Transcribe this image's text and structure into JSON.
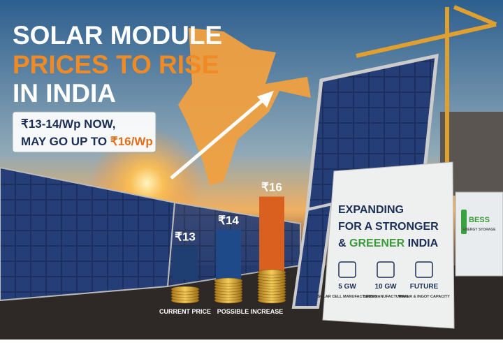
{
  "headline": {
    "line1": "SOLAR MODULE",
    "line2": "PRICES TO RISE",
    "line3": "IN INDIA"
  },
  "price_box": {
    "line1": "₹13-14/Wp NOW,",
    "line2_prefix": "MAY GO UP TO",
    "line2_highlight": "₹16/Wp"
  },
  "chart_data": {
    "type": "bar",
    "categories": [
      "CURRENT PRICE",
      "POSSIBLE INCREASE",
      null
    ],
    "values": [
      13,
      14,
      16
    ],
    "value_labels": [
      "₹13",
      "₹14",
      "₹16"
    ],
    "colors": [
      "#1f3f73",
      "#1f4a8a",
      "#d9601e"
    ],
    "ylim": [
      11,
      16.4
    ]
  },
  "panel": {
    "line1": "EXPANDING",
    "line2": "FOR A STRONGER",
    "line3_prefix": "&",
    "line3_highlight": "GREENER",
    "line3_suffix": "INDIA",
    "items": [
      {
        "value": "5 GW",
        "label": "SOLAR CELL MANUFACTURING"
      },
      {
        "value": "10 GW",
        "label": "BESS MANUFACTURING"
      },
      {
        "value": "FUTURE",
        "label": "WAFER & INGOT CAPACITY"
      }
    ]
  },
  "container": {
    "title": "BESS",
    "subtitle": "ENERGY STORAGE"
  }
}
